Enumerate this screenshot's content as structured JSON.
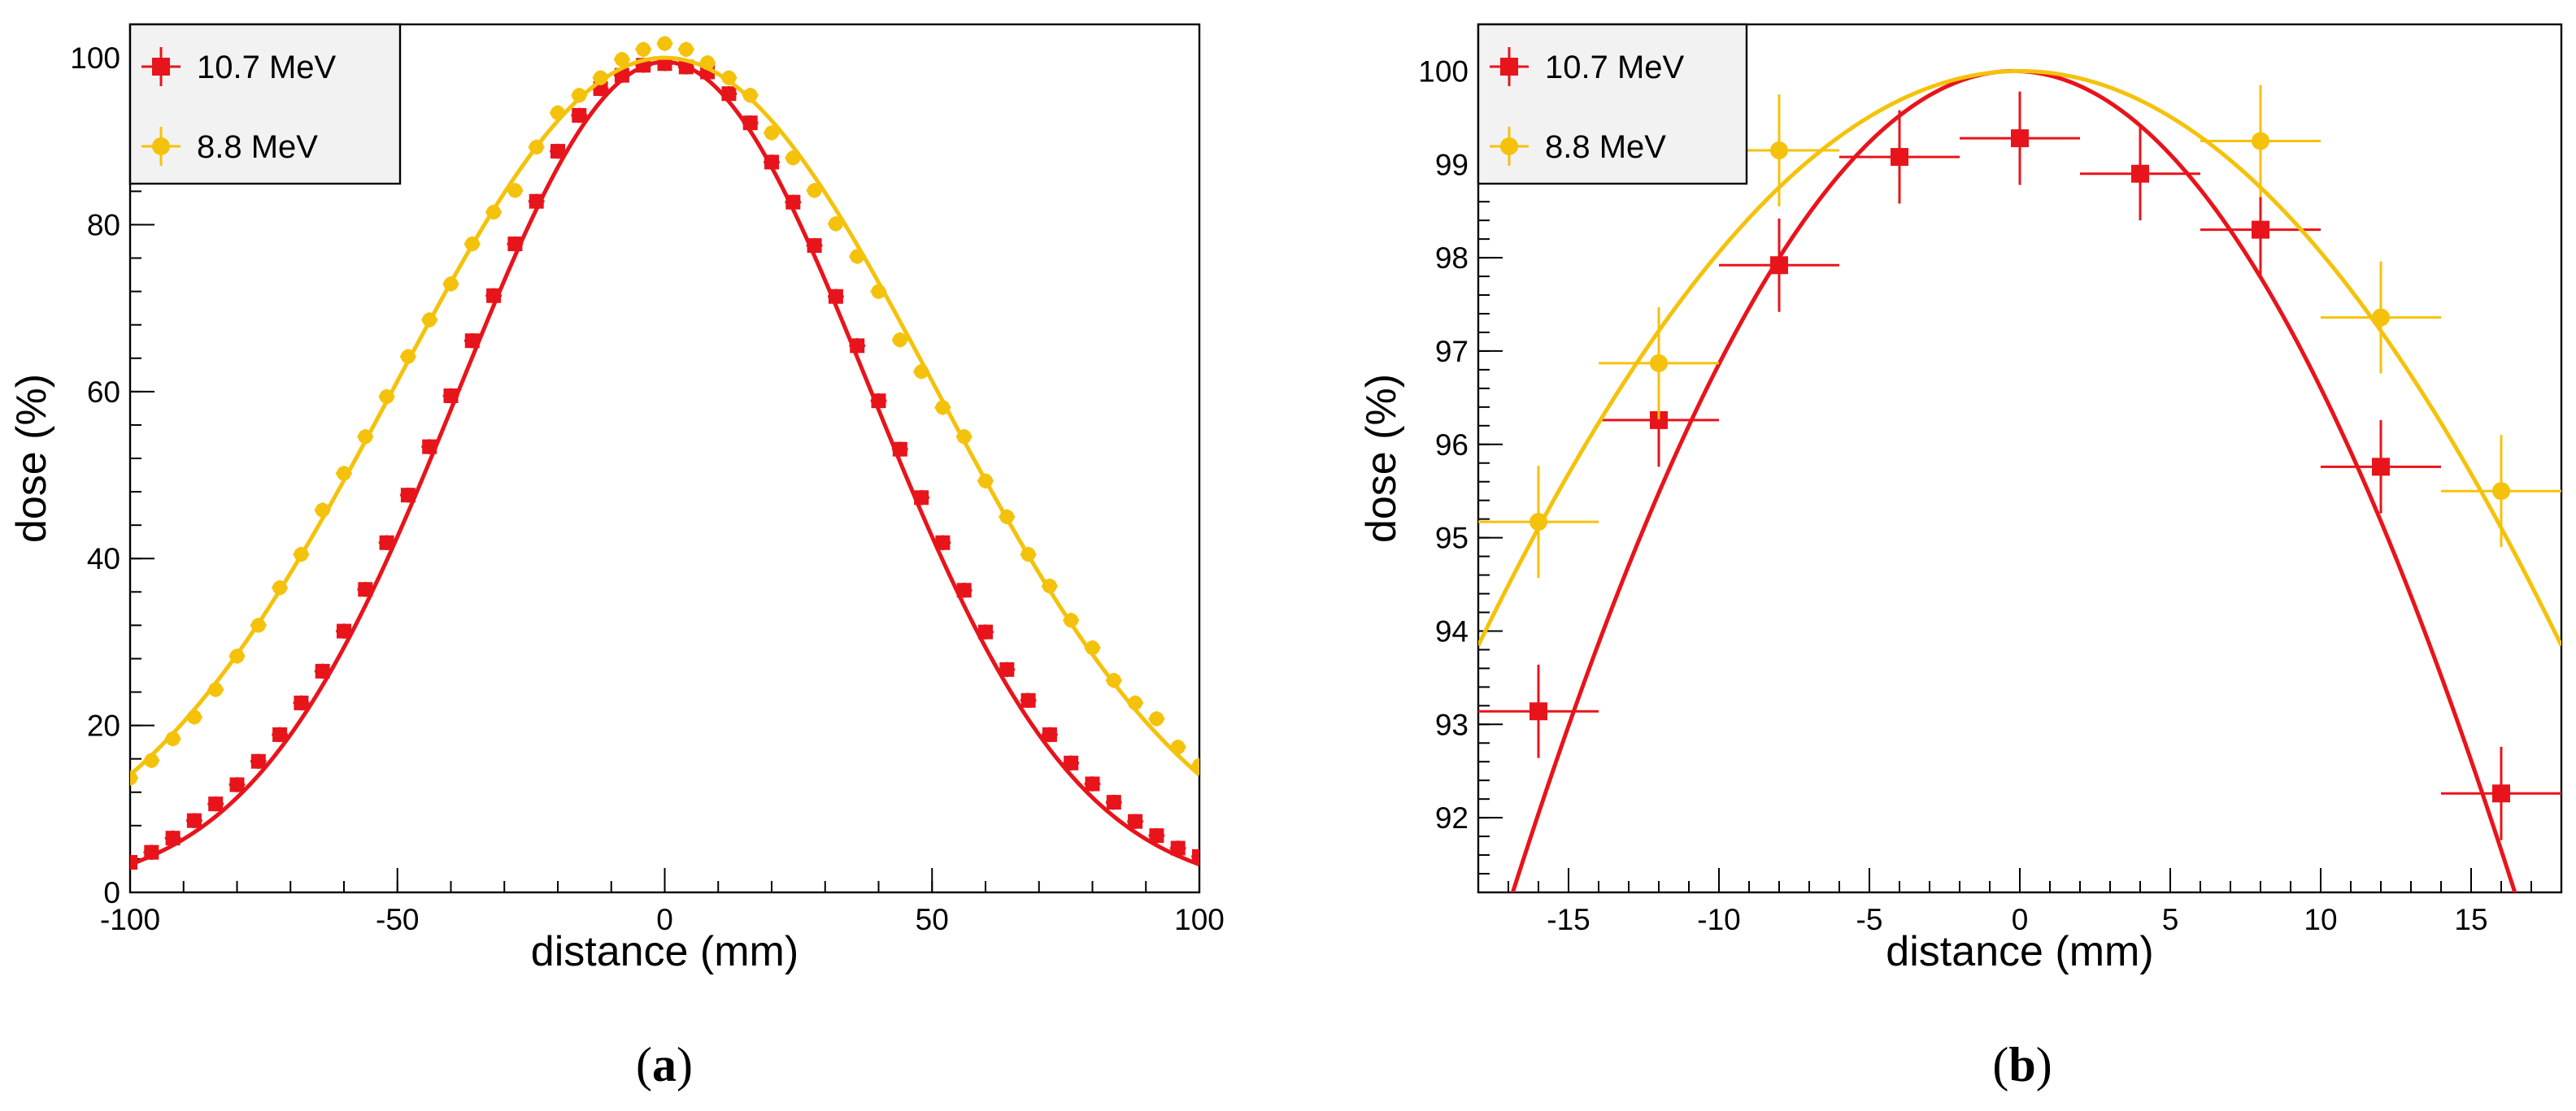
{
  "colors": {
    "red": "#e8141b",
    "yellow": "#f5c20b",
    "legend_bg": "#f2f2f2"
  },
  "chart_data": [
    {
      "id": "a",
      "type": "scatter",
      "caption": {
        "open": "(",
        "letter": "a",
        "close": ")"
      },
      "xlabel": "distance (mm)",
      "ylabel": "dose (%)",
      "xlim": [
        -100,
        100
      ],
      "ylim": [
        0,
        104
      ],
      "xticks": [
        -100,
        -50,
        0,
        50,
        100
      ],
      "xtick_labels": [
        "-100",
        "-50",
        "0",
        "50",
        "100"
      ],
      "yticks": [
        0,
        20,
        40,
        60,
        80,
        100
      ],
      "ytick_labels": [
        "0",
        "20",
        "40",
        "60",
        "80",
        "100"
      ],
      "x_minor_step": 10,
      "y_minor_step": 4,
      "marker_size": "small",
      "series": [
        {
          "name": "10.7 MeV",
          "color": "#e8141b",
          "marker": "square",
          "fit": {
            "type": "gauss",
            "amp": 99.5,
            "mu": 0,
            "sigma": 38.4,
            "xmin": -100,
            "xmax": 100
          },
          "x": [
            -100,
            -96,
            -92,
            -88,
            -84,
            -80,
            -76,
            -72,
            -68,
            -64,
            -60,
            -56,
            -52,
            -48,
            -44,
            -40,
            -36,
            -32,
            -28,
            -24,
            -20,
            -16,
            -12,
            -8,
            -4,
            0,
            4,
            8,
            12,
            16,
            20,
            24,
            28,
            32,
            36,
            40,
            44,
            48,
            52,
            56,
            60,
            64,
            68,
            72,
            76,
            80,
            84,
            88,
            92,
            96,
            100
          ],
          "y": [
            3.6,
            4.8,
            6.5,
            8.6,
            10.6,
            12.9,
            15.7,
            18.9,
            22.7,
            26.5,
            31.3,
            36.3,
            41.9,
            47.6,
            53.4,
            59.5,
            66.1,
            71.5,
            77.7,
            82.8,
            88.8,
            93.1,
            96.3,
            97.9,
            99.1,
            99.3,
            98.9,
            98.3,
            95.7,
            92.2,
            87.5,
            82.7,
            77.5,
            71.4,
            65.5,
            58.9,
            53.1,
            47.3,
            41.9,
            36.2,
            31.2,
            26.7,
            23.0,
            18.9,
            15.5,
            13.0,
            10.8,
            8.5,
            6.8,
            5.3,
            4.3
          ],
          "xerr": 1.5,
          "yerr": 0.9
        },
        {
          "name": "8.8 MeV",
          "color": "#f5c20b",
          "marker": "circle",
          "fit": {
            "type": "gauss",
            "amp": 100,
            "mu": 0,
            "sigma": 50.5,
            "xmin": -100,
            "xmax": 100
          },
          "x": [
            -100,
            -96,
            -92,
            -88,
            -84,
            -80,
            -76,
            -72,
            -68,
            -64,
            -60,
            -56,
            -52,
            -48,
            -44,
            -40,
            -36,
            -32,
            -28,
            -24,
            -20,
            -16,
            -12,
            -8,
            -4,
            0,
            4,
            8,
            12,
            16,
            20,
            24,
            28,
            32,
            36,
            40,
            44,
            48,
            52,
            56,
            60,
            64,
            68,
            72,
            76,
            80,
            84,
            88,
            92,
            96,
            100
          ],
          "y": [
            13.7,
            15.8,
            18.4,
            21.0,
            24.3,
            28.3,
            32.0,
            36.5,
            40.5,
            45.8,
            50.2,
            54.6,
            59.4,
            64.2,
            68.6,
            72.9,
            77.7,
            81.5,
            84.1,
            89.3,
            93.4,
            95.5,
            97.6,
            99.8,
            101.0,
            101.7,
            101.0,
            99.4,
            97.6,
            95.5,
            91.0,
            88.0,
            84.1,
            80.1,
            76.2,
            72.0,
            66.2,
            62.4,
            58.1,
            54.6,
            49.3,
            45.0,
            40.5,
            36.7,
            32.6,
            29.3,
            25.4,
            22.7,
            20.8,
            17.4,
            15.2
          ],
          "xerr": 1.5,
          "yerr": 0.9
        }
      ],
      "legend": {
        "position": "top-left",
        "entries": [
          "10.7 MeV",
          "8.8 MeV"
        ]
      }
    },
    {
      "id": "b",
      "type": "scatter",
      "caption": {
        "open": "(",
        "letter": "b",
        "close": ")"
      },
      "xlabel": "distance (mm)",
      "ylabel": "dose (%)",
      "xlim": [
        -18,
        18
      ],
      "ylim": [
        91.2,
        100.5
      ],
      "xticks": [
        -15,
        -10,
        -5,
        0,
        5,
        10,
        15
      ],
      "xtick_labels": [
        "-15",
        "-10",
        "-5",
        "0",
        "5",
        "10",
        "15"
      ],
      "yticks": [
        92,
        93,
        94,
        95,
        96,
        97,
        98,
        99,
        100
      ],
      "ytick_labels": [
        "92",
        "93",
        "94",
        "95",
        "96",
        "97",
        "98",
        "99",
        "100"
      ],
      "x_minor_step": 1,
      "y_minor_step": 0.2,
      "marker_size": "large",
      "series": [
        {
          "name": "10.7 MeV",
          "color": "#e8141b",
          "marker": "square",
          "fit": {
            "type": "gauss",
            "amp": 100,
            "mu": -0.2,
            "sigma": 38.8,
            "xmin": -18,
            "xmax": 18
          },
          "x": [
            -16,
            -12,
            -8,
            -4,
            0,
            4,
            8,
            12,
            16
          ],
          "y": [
            93.14,
            96.26,
            97.92,
            99.08,
            99.28,
            98.9,
            98.3,
            95.76,
            92.26
          ],
          "xerr": 2,
          "yerr": 0.5
        },
        {
          "name": "8.8 MeV",
          "color": "#f5c20b",
          "marker": "circle",
          "fit": {
            "type": "gauss",
            "amp": 100,
            "mu": 0,
            "sigma": 50.5,
            "xmin": -18,
            "xmax": 18
          },
          "x": [
            -16,
            -12,
            -8,
            8,
            12,
            16
          ],
          "y": [
            95.17,
            96.87,
            99.15,
            99.25,
            97.36,
            95.5
          ],
          "xerr": 2,
          "yerr": 0.6
        }
      ],
      "legend": {
        "position": "top-left",
        "entries": [
          "10.7 MeV",
          "8.8 MeV"
        ]
      }
    }
  ]
}
